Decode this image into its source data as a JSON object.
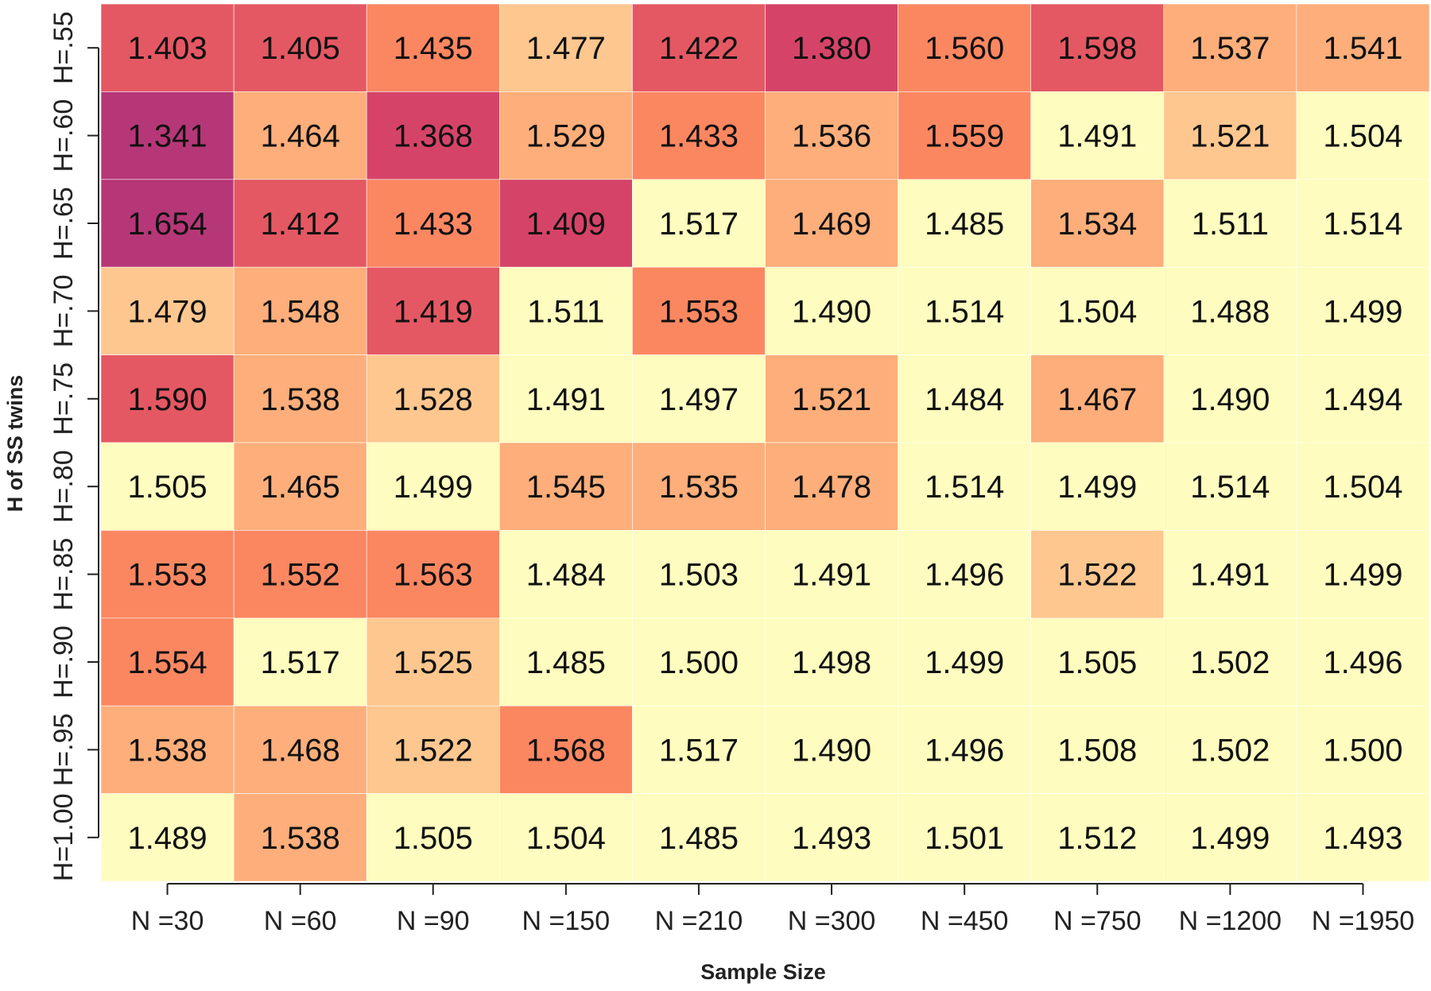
{
  "chart_data": {
    "type": "heatmap",
    "xlabel": "Sample Size",
    "ylabel": "H of SS twins",
    "x_categories": [
      "N =30",
      "N =60",
      "N =90",
      "N =150",
      "N =210",
      "N =300",
      "N =450",
      "N =750",
      "N =1200",
      "N =1950"
    ],
    "y_categories": [
      "H=.55",
      "H=.60",
      "H=.65",
      "H=.70",
      "H=.75",
      "H=.80",
      "H=.85",
      "H=.90",
      "H=.95",
      "H=1.00"
    ],
    "values": [
      [
        "1.403",
        "1.405",
        "1.435",
        "1.477",
        "1.422",
        "1.380",
        "1.560",
        "1.598",
        "1.537",
        "1.541"
      ],
      [
        "1.341",
        "1.464",
        "1.368",
        "1.529",
        "1.433",
        "1.536",
        "1.559",
        "1.491",
        "1.521",
        "1.504"
      ],
      [
        "1.654",
        "1.412",
        "1.433",
        "1.409",
        "1.517",
        "1.469",
        "1.485",
        "1.534",
        "1.511",
        "1.514"
      ],
      [
        "1.479",
        "1.548",
        "1.419",
        "1.511",
        "1.553",
        "1.490",
        "1.514",
        "1.504",
        "1.488",
        "1.499"
      ],
      [
        "1.590",
        "1.538",
        "1.528",
        "1.491",
        "1.497",
        "1.521",
        "1.484",
        "1.467",
        "1.490",
        "1.494"
      ],
      [
        "1.505",
        "1.465",
        "1.499",
        "1.545",
        "1.535",
        "1.478",
        "1.514",
        "1.499",
        "1.514",
        "1.504"
      ],
      [
        "1.553",
        "1.552",
        "1.563",
        "1.484",
        "1.503",
        "1.491",
        "1.496",
        "1.522",
        "1.491",
        "1.499"
      ],
      [
        "1.554",
        "1.517",
        "1.525",
        "1.485",
        "1.500",
        "1.498",
        "1.499",
        "1.505",
        "1.502",
        "1.496"
      ],
      [
        "1.538",
        "1.468",
        "1.522",
        "1.568",
        "1.517",
        "1.490",
        "1.496",
        "1.508",
        "1.502",
        "1.500"
      ],
      [
        "1.489",
        "1.538",
        "1.505",
        "1.504",
        "1.485",
        "1.493",
        "1.501",
        "1.512",
        "1.499",
        "1.493"
      ]
    ],
    "cell_colors": [
      [
        "#E45863",
        "#E45863",
        "#FB8761",
        "#FDC78F",
        "#E45863",
        "#D54468",
        "#FB8761",
        "#E45863",
        "#FDAE7A",
        "#FDAE7A"
      ],
      [
        "#B63778",
        "#FDAE7A",
        "#D54468",
        "#FDAE7A",
        "#FB8761",
        "#FDAE7A",
        "#FB8761",
        "#FEFCBE",
        "#FDC78F",
        "#FEFCBE"
      ],
      [
        "#B63778",
        "#E45863",
        "#FB8761",
        "#D54468",
        "#FEFCBE",
        "#FDAE7A",
        "#FEFCBE",
        "#FDAE7A",
        "#FEFCBE",
        "#FEFCBE"
      ],
      [
        "#FDC78F",
        "#FDAE7A",
        "#E45863",
        "#FEFCBE",
        "#FB8761",
        "#FEFCBE",
        "#FEFCBE",
        "#FEFCBE",
        "#FEFCBE",
        "#FEFCBE"
      ],
      [
        "#E45863",
        "#FDAE7A",
        "#FDC78F",
        "#FEFCBE",
        "#FEFCBE",
        "#FDAE7A",
        "#FEFCBE",
        "#FDAE7A",
        "#FEFCBE",
        "#FEFCBE"
      ],
      [
        "#FEFCBE",
        "#FDAE7A",
        "#FEFCBE",
        "#FDAE7A",
        "#FDAE7A",
        "#FDAE7A",
        "#FEFCBE",
        "#FEFCBE",
        "#FEFCBE",
        "#FEFCBE"
      ],
      [
        "#FB8761",
        "#FB8761",
        "#FB8761",
        "#FEFCBE",
        "#FEFCBE",
        "#FEFCBE",
        "#FEFCBE",
        "#FDC78F",
        "#FEFCBE",
        "#FEFCBE"
      ],
      [
        "#FB8761",
        "#FEFCBE",
        "#FDC78F",
        "#FEFCBE",
        "#FEFCBE",
        "#FEFCBE",
        "#FEFCBE",
        "#FEFCBE",
        "#FEFCBE",
        "#FEFCBE"
      ],
      [
        "#FDAE7A",
        "#FDAE7A",
        "#FDC78F",
        "#FB8761",
        "#FEFCBE",
        "#FEFCBE",
        "#FEFCBE",
        "#FEFCBE",
        "#FEFCBE",
        "#FEFCBE"
      ],
      [
        "#FEFCBE",
        "#FDAE7A",
        "#FEFCBE",
        "#FEFCBE",
        "#FEFCBE",
        "#FEFCBE",
        "#FEFCBE",
        "#FEFCBE",
        "#FEFCBE",
        "#FEFCBE"
      ]
    ],
    "colors": {
      "axis_line": "#222222",
      "cell_gap": "#FFFFFF"
    }
  }
}
